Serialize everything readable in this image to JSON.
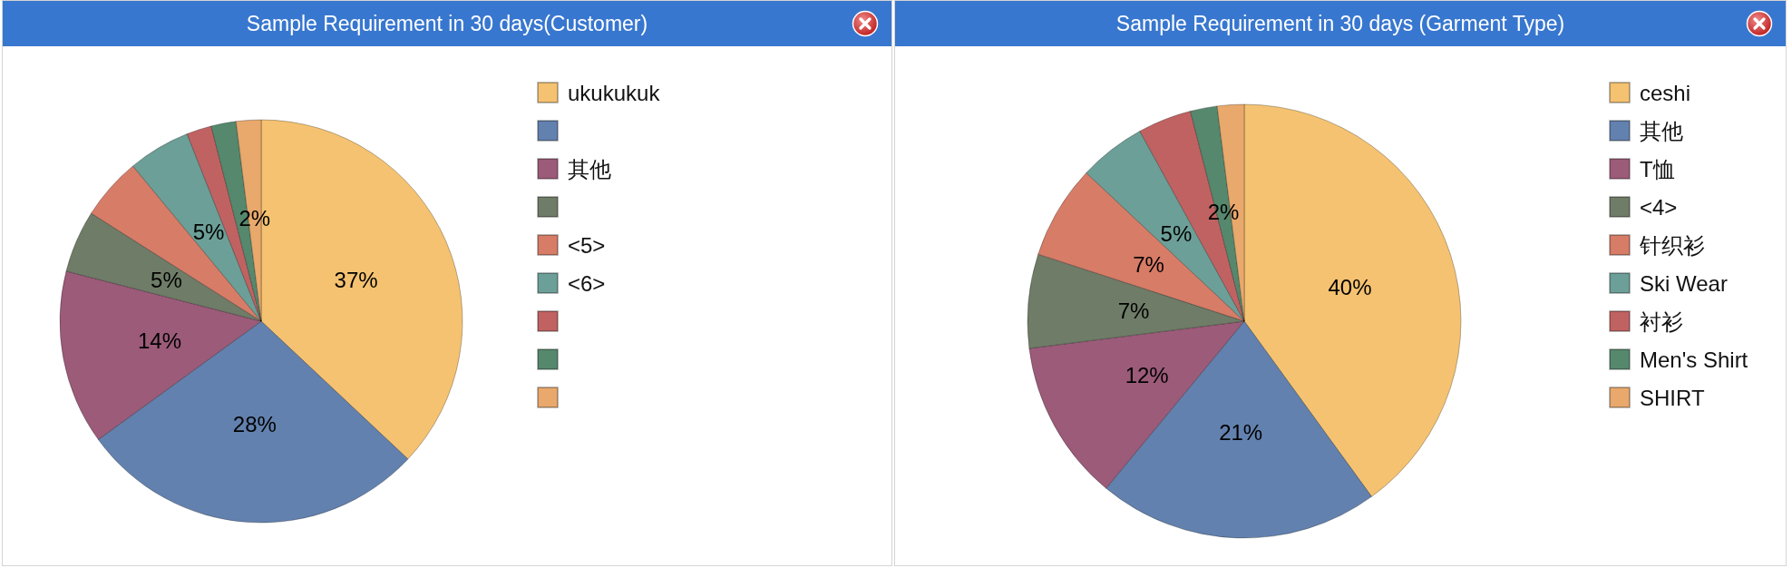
{
  "chart_data": [
    {
      "type": "pie",
      "title": "Sample Requirement in 30 days(Customer)",
      "categories": [
        "ukukukuk",
        null,
        "其他",
        null,
        "<5>",
        "<6>",
        null,
        null,
        null
      ],
      "values": [
        37,
        28,
        14,
        5,
        5,
        5,
        2,
        2,
        2
      ],
      "colors": [
        "#f4c271",
        "#6281ae",
        "#9b5b79",
        "#6f7c67",
        "#d77c67",
        "#6c9f97",
        "#c16262",
        "#55886d",
        "#e9a86c"
      ],
      "value_labels": [
        "37%",
        "28%",
        "14%",
        "5%",
        null,
        "5%",
        null,
        null,
        "2%"
      ],
      "legend": "top right"
    },
    {
      "type": "pie",
      "title": "Sample Requirement in 30 days (Garment Type)",
      "categories": [
        "ceshi",
        "其他",
        "T恤",
        "<4>",
        "针织衫",
        "Ski Wear",
        "衬衫",
        "Men's Shirt",
        "SHIRT"
      ],
      "values": [
        40,
        21,
        12,
        7,
        7,
        5,
        4,
        2,
        2
      ],
      "colors": [
        "#f4c271",
        "#6281ae",
        "#9b5b79",
        "#6f7c67",
        "#d77c67",
        "#6c9f97",
        "#c16262",
        "#55886d",
        "#e9a86c"
      ],
      "value_labels": [
        "40%",
        "21%",
        "12%",
        "7%",
        "7%",
        "5%",
        null,
        "2%",
        null
      ],
      "legend": "top right"
    }
  ]
}
